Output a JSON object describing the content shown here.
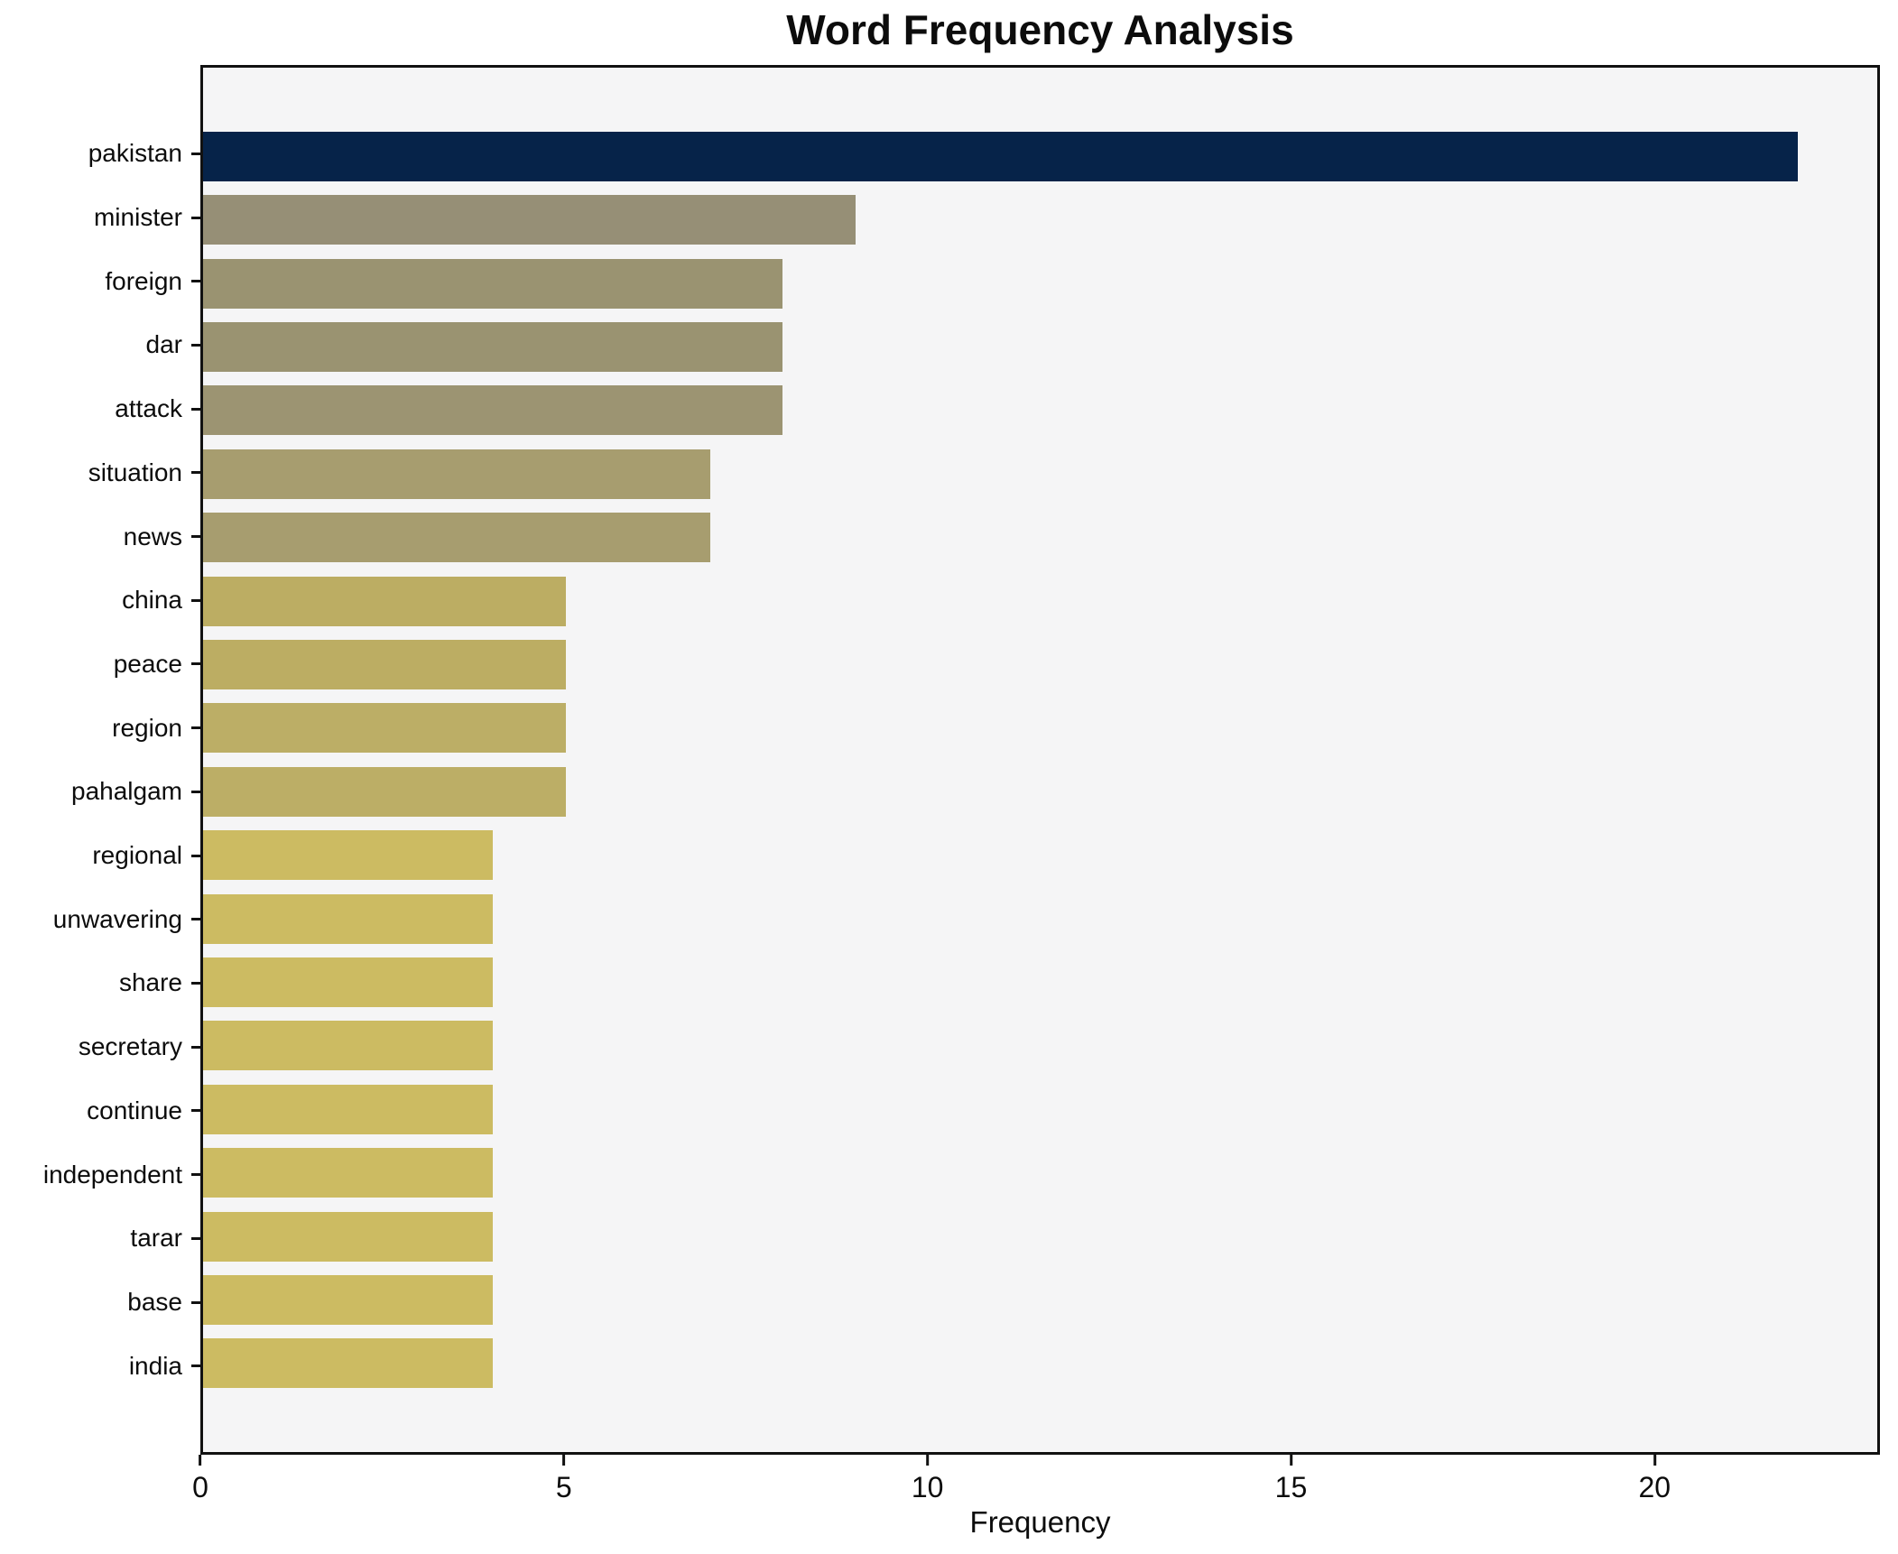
{
  "chart_data": {
    "type": "bar",
    "orientation": "horizontal",
    "title": "Word Frequency Analysis",
    "xlabel": "Frequency",
    "ylabel": "",
    "categories": [
      "pakistan",
      "minister",
      "foreign",
      "dar",
      "attack",
      "situation",
      "news",
      "china",
      "peace",
      "region",
      "pahalgam",
      "regional",
      "unwavering",
      "share",
      "secretary",
      "continue",
      "independent",
      "tarar",
      "base",
      "india"
    ],
    "values": [
      22,
      9,
      8,
      8,
      8,
      7,
      7,
      5,
      5,
      5,
      5,
      4,
      4,
      4,
      4,
      4,
      4,
      4,
      4,
      4
    ],
    "bar_colors": [
      "#062349",
      "#968f76",
      "#9a9371",
      "#9a9371",
      "#9c9472",
      "#a79d6f",
      "#a79d6f",
      "#bcad63",
      "#bcad63",
      "#bcae66",
      "#bcae66",
      "#ccbb62",
      "#ccbb62",
      "#ccbb62",
      "#ccbb62",
      "#ccbb62",
      "#ccbb62",
      "#ccbb62",
      "#ccbb62",
      "#ccbb62"
    ],
    "xlim": [
      0,
      23.1
    ],
    "xticks": [
      0,
      5,
      10,
      15,
      20
    ],
    "grid": false,
    "legend_position": "none",
    "plot_background": "#f5f5f6",
    "figure_background": "#ffffff",
    "spine_color": "#111111",
    "accent_color": "#062349"
  }
}
